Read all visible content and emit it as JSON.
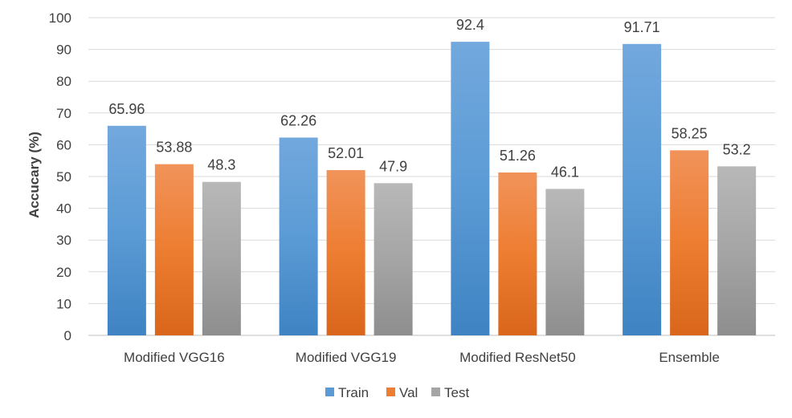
{
  "chart_data": {
    "type": "bar",
    "title": "",
    "xlabel": "",
    "ylabel": "Accucary (%)",
    "ylim": [
      0,
      100
    ],
    "yticks": [
      0,
      10,
      20,
      30,
      40,
      50,
      60,
      70,
      80,
      90,
      100
    ],
    "grid": true,
    "legend_position": "bottom",
    "categories": [
      "Modified VGG16",
      "Modified VGG19",
      "Modified ResNet50",
      "Ensemble"
    ],
    "series": [
      {
        "name": "Train",
        "values": [
          65.96,
          62.26,
          92.4,
          91.71
        ],
        "labels": [
          "65.96",
          "62.26",
          "92.4",
          "91.71"
        ],
        "color": "#5B9BD5"
      },
      {
        "name": "Val",
        "values": [
          53.88,
          52.01,
          51.26,
          58.25
        ],
        "labels": [
          "53.88",
          "52.01",
          "51.26",
          "58.25"
        ],
        "color": "#ED7D31"
      },
      {
        "name": "Test",
        "values": [
          48.3,
          47.9,
          46.1,
          53.2
        ],
        "labels": [
          "48.3",
          "47.9",
          "46.1",
          "53.2"
        ],
        "color": "#A5A5A5"
      }
    ]
  }
}
